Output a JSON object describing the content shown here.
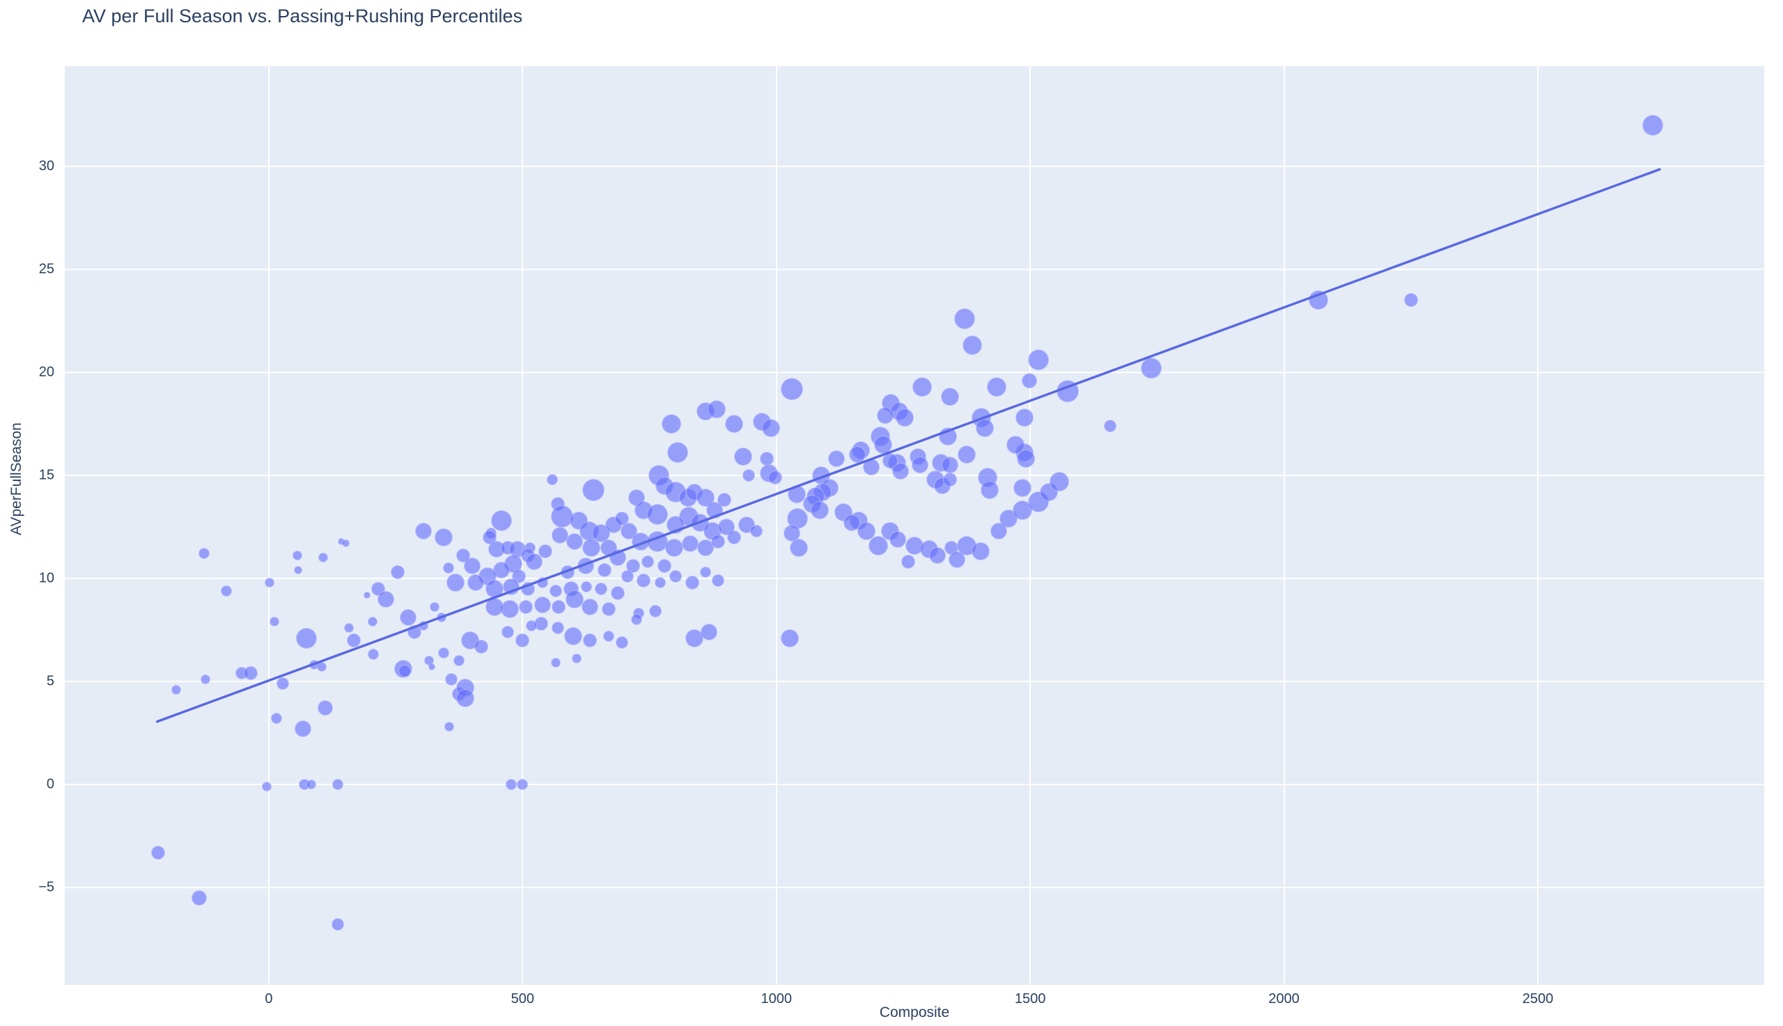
{
  "chart_data": {
    "type": "scatter",
    "title": "AV per Full Season vs. Passing+Rushing Percentiles",
    "xlabel": "Composite",
    "ylabel": "AVperFullSeason",
    "xlim": [
      -402,
      2946
    ],
    "ylim": [
      -9.73,
      34.86
    ],
    "x_ticks": [
      0,
      500,
      1000,
      1500,
      2000,
      2500
    ],
    "y_ticks": [
      -5,
      0,
      5,
      10,
      15,
      20,
      25,
      30
    ],
    "grid": true,
    "legend": false,
    "colors": {
      "plot_background": "#e6ecf6",
      "grid": "#ffffff",
      "marker": "rgba(99,110,250,0.62)",
      "marker_edge": "rgba(255,255,255,0.40)",
      "trend_line": "#5968e2",
      "text": "#2a3f5f"
    },
    "trendline": {
      "x1": -220,
      "y1": 3.05,
      "x2": 2740,
      "y2": 29.85
    },
    "point_format": [
      "composite",
      "av_per_full_season",
      "marker_radius_px"
    ],
    "points": [
      [
        -128,
        11.2,
        8
      ],
      [
        -84,
        9.4,
        8
      ],
      [
        56,
        11.1,
        7
      ],
      [
        58,
        10.4,
        6
      ],
      [
        107,
        11.0,
        7
      ],
      [
        143,
        11.8,
        5
      ],
      [
        152,
        11.7,
        5.5
      ],
      [
        1,
        9.8,
        7
      ],
      [
        11,
        7.9,
        7
      ],
      [
        74,
        7.1,
        15
      ],
      [
        158,
        7.6,
        7
      ],
      [
        168,
        7.0,
        10
      ],
      [
        206,
        6.3,
        8
      ],
      [
        89,
        5.8,
        7
      ],
      [
        104,
        5.7,
        7
      ],
      [
        -54,
        5.4,
        9
      ],
      [
        -36,
        5.4,
        10
      ],
      [
        -125,
        5.1,
        7
      ],
      [
        -183,
        4.6,
        7
      ],
      [
        27,
        4.9,
        9
      ],
      [
        111,
        3.7,
        11
      ],
      [
        15,
        3.2,
        8
      ],
      [
        67,
        2.7,
        12
      ],
      [
        265,
        5.6,
        13
      ],
      [
        268,
        5.5,
        9
      ],
      [
        316,
        6.0,
        7
      ],
      [
        321,
        5.7,
        5
      ],
      [
        345,
        6.4,
        8
      ],
      [
        374,
        6.0,
        8
      ],
      [
        360,
        5.1,
        9
      ],
      [
        374,
        4.4,
        10
      ],
      [
        356,
        2.8,
        7
      ],
      [
        -4,
        -0.1,
        7
      ],
      [
        70,
        0,
        8
      ],
      [
        84,
        0,
        7
      ],
      [
        136,
        0,
        8
      ],
      [
        305,
        12.3,
        12
      ],
      [
        345,
        12.0,
        13
      ],
      [
        254,
        10.3,
        10
      ],
      [
        354,
        10.5,
        8
      ],
      [
        368,
        9.8,
        13
      ],
      [
        216,
        9.5,
        10
      ],
      [
        231,
        9.0,
        12
      ],
      [
        275,
        8.1,
        12
      ],
      [
        287,
        7.4,
        10
      ],
      [
        304,
        7.7,
        7
      ],
      [
        326,
        8.6,
        7
      ],
      [
        341,
        8.1,
        7
      ],
      [
        194,
        9.2,
        5
      ],
      [
        205,
        7.9,
        7
      ],
      [
        -218,
        -3.3,
        10
      ],
      [
        -137,
        -5.5,
        11
      ],
      [
        136,
        -6.8,
        9
      ],
      [
        401,
        10.6,
        12
      ],
      [
        383,
        11.1,
        10
      ],
      [
        793,
        17.5,
        14
      ],
      [
        860,
        18.1,
        13
      ],
      [
        882,
        18.2,
        13
      ],
      [
        916,
        17.5,
        13
      ],
      [
        971,
        17.6,
        13
      ],
      [
        990,
        17.3,
        13
      ],
      [
        805,
        16.1,
        15
      ],
      [
        935,
        15.9,
        13
      ],
      [
        981,
        15.8,
        10
      ],
      [
        985,
        15.1,
        13
      ],
      [
        997,
        14.9,
        10
      ],
      [
        946,
        15.0,
        9
      ],
      [
        768,
        15.0,
        15
      ],
      [
        779,
        14.5,
        13
      ],
      [
        802,
        14.2,
        15
      ],
      [
        559,
        14.8,
        8
      ],
      [
        640,
        14.3,
        16
      ],
      [
        569,
        13.6,
        10
      ],
      [
        724,
        13.9,
        12
      ],
      [
        738,
        13.3,
        13
      ],
      [
        765,
        13.1,
        15
      ],
      [
        826,
        13.9,
        13
      ],
      [
        839,
        14.2,
        12
      ],
      [
        861,
        13.9,
        13
      ],
      [
        878,
        13.3,
        12
      ],
      [
        898,
        13.8,
        10
      ],
      [
        827,
        13.0,
        14
      ],
      [
        802,
        12.6,
        13
      ],
      [
        850,
        12.7,
        13
      ],
      [
        874,
        12.3,
        13
      ],
      [
        902,
        12.5,
        12
      ],
      [
        916,
        12.0,
        10
      ],
      [
        942,
        12.6,
        12
      ],
      [
        960,
        12.3,
        9
      ],
      [
        578,
        13.0,
        16
      ],
      [
        610,
        12.8,
        13
      ],
      [
        631,
        12.3,
        14
      ],
      [
        655,
        12.2,
        13
      ],
      [
        679,
        12.6,
        12
      ],
      [
        696,
        12.9,
        10
      ],
      [
        710,
        12.3,
        12
      ],
      [
        733,
        11.8,
        13
      ],
      [
        765,
        11.8,
        15
      ],
      [
        798,
        11.5,
        13
      ],
      [
        830,
        11.7,
        12
      ],
      [
        861,
        11.5,
        12
      ],
      [
        885,
        11.8,
        10
      ],
      [
        669,
        11.5,
        12
      ],
      [
        635,
        11.5,
        13
      ],
      [
        603,
        11.8,
        12
      ],
      [
        573,
        12.1,
        12
      ],
      [
        545,
        11.3,
        10
      ],
      [
        514,
        11.5,
        8
      ],
      [
        688,
        11.0,
        12
      ],
      [
        717,
        10.6,
        10
      ],
      [
        747,
        10.8,
        9
      ],
      [
        779,
        10.6,
        10
      ],
      [
        661,
        10.4,
        10
      ],
      [
        624,
        10.6,
        12
      ],
      [
        589,
        10.3,
        10
      ],
      [
        459,
        12.8,
        15
      ],
      [
        438,
        12.2,
        8
      ],
      [
        435,
        12.0,
        10
      ],
      [
        449,
        11.4,
        12
      ],
      [
        470,
        11.5,
        10
      ],
      [
        490,
        11.4,
        12
      ],
      [
        510,
        11.1,
        10
      ],
      [
        523,
        10.8,
        12
      ],
      [
        482,
        10.7,
        13
      ],
      [
        459,
        10.4,
        12
      ],
      [
        493,
        10.1,
        10
      ],
      [
        431,
        10.1,
        13
      ],
      [
        407,
        9.8,
        12
      ],
      [
        445,
        9.5,
        13
      ],
      [
        477,
        9.6,
        12
      ],
      [
        511,
        9.5,
        10
      ],
      [
        539,
        9.8,
        8
      ],
      [
        565,
        9.4,
        9
      ],
      [
        596,
        9.5,
        11
      ],
      [
        626,
        9.6,
        8
      ],
      [
        655,
        9.5,
        9
      ],
      [
        688,
        9.3,
        10
      ],
      [
        603,
        9.0,
        13
      ],
      [
        633,
        8.6,
        12
      ],
      [
        669,
        8.5,
        10
      ],
      [
        571,
        8.6,
        10
      ],
      [
        539,
        8.7,
        12
      ],
      [
        507,
        8.6,
        10
      ],
      [
        475,
        8.5,
        13
      ],
      [
        445,
        8.6,
        13
      ],
      [
        706,
        10.1,
        9
      ],
      [
        738,
        9.9,
        10
      ],
      [
        771,
        9.8,
        8
      ],
      [
        802,
        10.1,
        9
      ],
      [
        834,
        9.8,
        10
      ],
      [
        861,
        10.3,
        8
      ],
      [
        885,
        9.9,
        9
      ],
      [
        537,
        7.8,
        10
      ],
      [
        569,
        7.6,
        9
      ],
      [
        600,
        7.2,
        13
      ],
      [
        633,
        7.0,
        10
      ],
      [
        669,
        7.2,
        8
      ],
      [
        696,
        6.9,
        9
      ],
      [
        729,
        8.3,
        8
      ],
      [
        761,
        8.4,
        9
      ],
      [
        724,
        8.0,
        8
      ],
      [
        565,
        5.9,
        7
      ],
      [
        607,
        6.1,
        7
      ],
      [
        397,
        7.0,
        13
      ],
      [
        418,
        6.7,
        10
      ],
      [
        387,
        4.7,
        13
      ],
      [
        387,
        4.2,
        13
      ],
      [
        470,
        7.4,
        9
      ],
      [
        500,
        7.0,
        10
      ],
      [
        517,
        7.7,
        8
      ],
      [
        839,
        7.1,
        13
      ],
      [
        867,
        7.4,
        12
      ],
      [
        478,
        0,
        8
      ],
      [
        499,
        0,
        8
      ],
      [
        1026,
        7.1,
        13
      ],
      [
        1030,
        19.2,
        16
      ],
      [
        1371,
        22.6,
        15
      ],
      [
        1386,
        21.3,
        14
      ],
      [
        1516,
        20.6,
        15
      ],
      [
        1499,
        19.6,
        11
      ],
      [
        1287,
        19.3,
        14
      ],
      [
        1342,
        18.8,
        13
      ],
      [
        1434,
        19.3,
        14
      ],
      [
        1574,
        19.1,
        16
      ],
      [
        1225,
        18.5,
        13
      ],
      [
        1242,
        18.1,
        13
      ],
      [
        1253,
        17.8,
        13
      ],
      [
        1214,
        17.9,
        12
      ],
      [
        1404,
        17.8,
        14
      ],
      [
        1410,
        17.3,
        13
      ],
      [
        1489,
        17.8,
        13
      ],
      [
        1489,
        16.1,
        13
      ],
      [
        1492,
        15.8,
        13
      ],
      [
        1205,
        16.9,
        14
      ],
      [
        1210,
        16.5,
        13
      ],
      [
        1166,
        16.2,
        13
      ],
      [
        1159,
        16.0,
        12
      ],
      [
        1118,
        15.8,
        12
      ],
      [
        1088,
        15.0,
        13
      ],
      [
        1104,
        14.4,
        13
      ],
      [
        1091,
        14.2,
        13
      ],
      [
        1077,
        14.0,
        13
      ],
      [
        1070,
        13.6,
        13
      ],
      [
        1086,
        13.3,
        13
      ],
      [
        1338,
        16.9,
        13
      ],
      [
        1324,
        15.6,
        13
      ],
      [
        1342,
        15.5,
        12
      ],
      [
        1375,
        16.0,
        13
      ],
      [
        1279,
        15.9,
        12
      ],
      [
        1283,
        15.5,
        12
      ],
      [
        1471,
        16.5,
        13
      ],
      [
        1658,
        17.4,
        9
      ],
      [
        1313,
        14.8,
        13
      ],
      [
        1327,
        14.5,
        12
      ],
      [
        1342,
        14.8,
        10
      ],
      [
        1238,
        15.6,
        13
      ],
      [
        1245,
        15.2,
        12
      ],
      [
        1224,
        15.7,
        11
      ],
      [
        1187,
        15.4,
        12
      ],
      [
        1416,
        14.9,
        14
      ],
      [
        1420,
        14.3,
        13
      ],
      [
        1485,
        14.4,
        13
      ],
      [
        1132,
        13.2,
        13
      ],
      [
        1162,
        12.8,
        13
      ],
      [
        1148,
        12.7,
        12
      ],
      [
        1177,
        12.3,
        13
      ],
      [
        1224,
        12.3,
        13
      ],
      [
        1239,
        11.9,
        12
      ],
      [
        1200,
        11.6,
        14
      ],
      [
        1272,
        11.6,
        13
      ],
      [
        1301,
        11.4,
        13
      ],
      [
        1317,
        11.1,
        12
      ],
      [
        1345,
        11.5,
        10
      ],
      [
        1375,
        11.6,
        14
      ],
      [
        1403,
        11.3,
        13
      ],
      [
        1356,
        10.9,
        12
      ],
      [
        1260,
        10.8,
        10
      ],
      [
        1438,
        12.3,
        12
      ],
      [
        1457,
        12.9,
        13
      ],
      [
        1485,
        13.3,
        14
      ],
      [
        1516,
        13.7,
        15
      ],
      [
        1537,
        14.2,
        13
      ],
      [
        1558,
        14.7,
        14
      ],
      [
        1042,
        12.9,
        15
      ],
      [
        1031,
        12.2,
        12
      ],
      [
        1044,
        11.5,
        13
      ],
      [
        1040,
        14.1,
        13
      ],
      [
        1738,
        20.2,
        15
      ],
      [
        2068,
        23.5,
        14
      ],
      [
        2250,
        23.5,
        10
      ],
      [
        2726,
        32.0,
        15
      ]
    ]
  }
}
